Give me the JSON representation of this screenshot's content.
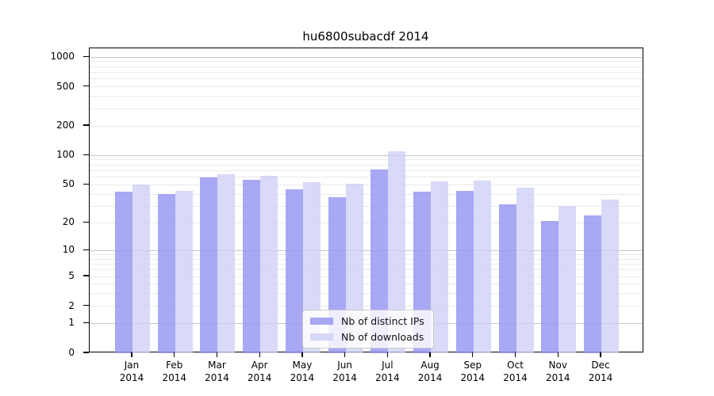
{
  "chart_data": {
    "type": "bar",
    "title": "hu6800subacdf 2014",
    "categories": [
      "Jan",
      "Feb",
      "Mar",
      "Apr",
      "May",
      "Jun",
      "Jul",
      "Aug",
      "Sep",
      "Oct",
      "Nov",
      "Dec"
    ],
    "year_label": "2014",
    "series": [
      {
        "name": "Nb of distinct IPs",
        "color": "rgba(149,149,242,0.82)",
        "values": [
          42,
          40,
          59,
          56,
          45,
          37,
          72,
          42,
          43,
          31,
          21,
          24
        ]
      },
      {
        "name": "Nb of downloads",
        "color": "rgba(206,206,246,0.78)",
        "values": [
          50,
          43,
          64,
          62,
          53,
          51,
          110,
          54,
          55,
          47,
          30,
          35
        ]
      }
    ],
    "y_axis": {
      "scale": "log10(value+1)",
      "ticks": [
        0,
        1,
        2,
        5,
        10,
        20,
        50,
        100,
        200,
        500,
        1000
      ],
      "range_top": 1230
    },
    "grid": {
      "major_values": [
        1,
        10,
        100,
        1000
      ],
      "major_color": "#c8c8c8",
      "minor_color": "#eaeaea"
    },
    "legend": {
      "position": "bottom-center"
    }
  }
}
